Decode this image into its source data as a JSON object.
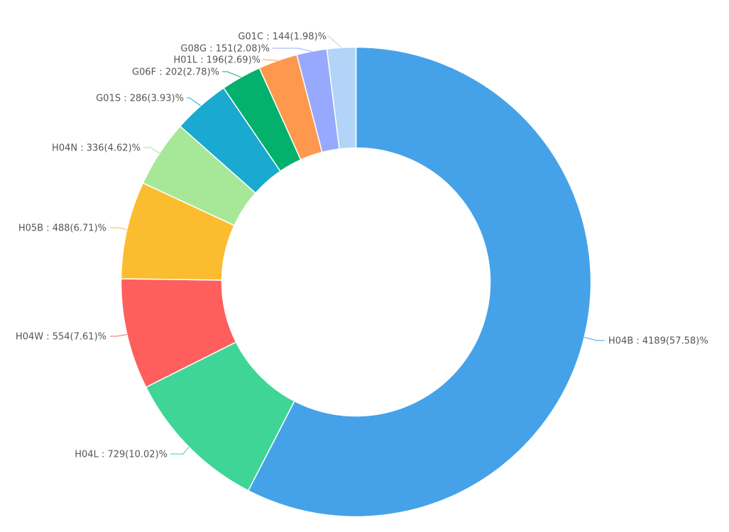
{
  "chart_data": {
    "type": "pie",
    "donut": true,
    "legend": "none",
    "label_format": "{name} : {value}({percent})%",
    "slices": [
      {
        "name": "H04B",
        "value": 4189,
        "percent": "57.58",
        "label": "H04B : 4189(57.58)%",
        "color": "#45a2e9"
      },
      {
        "name": "H04L",
        "value": 729,
        "percent": "10.02",
        "label": "H04L : 729(10.02)%",
        "color": "#3ed597"
      },
      {
        "name": "H04W",
        "value": 554,
        "percent": "7.61",
        "label": "H04W : 554(7.61)%",
        "color": "#fe5f5c"
      },
      {
        "name": "H05B",
        "value": 488,
        "percent": "6.71",
        "label": "H05B : 488(6.71)%",
        "color": "#fbbc2f"
      },
      {
        "name": "H04N",
        "value": 336,
        "percent": "4.62",
        "label": "H04N : 336(4.62)%",
        "color": "#a6e897"
      },
      {
        "name": "G01S",
        "value": 286,
        "percent": "3.93",
        "label": "G01S : 286(3.93)%",
        "color": "#1aa9d1"
      },
      {
        "name": "G06F",
        "value": 202,
        "percent": "2.78",
        "label": "G06F : 202(2.78)%",
        "color": "#03b06c"
      },
      {
        "name": "H01L",
        "value": 196,
        "percent": "2.69",
        "label": "H01L : 196(2.69)%",
        "color": "#fe984e"
      },
      {
        "name": "G08G",
        "value": 151,
        "percent": "2.08",
        "label": "G08G : 151(2.08)%",
        "color": "#97a9fc"
      },
      {
        "name": "G01C",
        "value": 144,
        "percent": "1.98",
        "label": "G01C : 144(1.98)%",
        "color": "#b1d4f8"
      }
    ]
  }
}
